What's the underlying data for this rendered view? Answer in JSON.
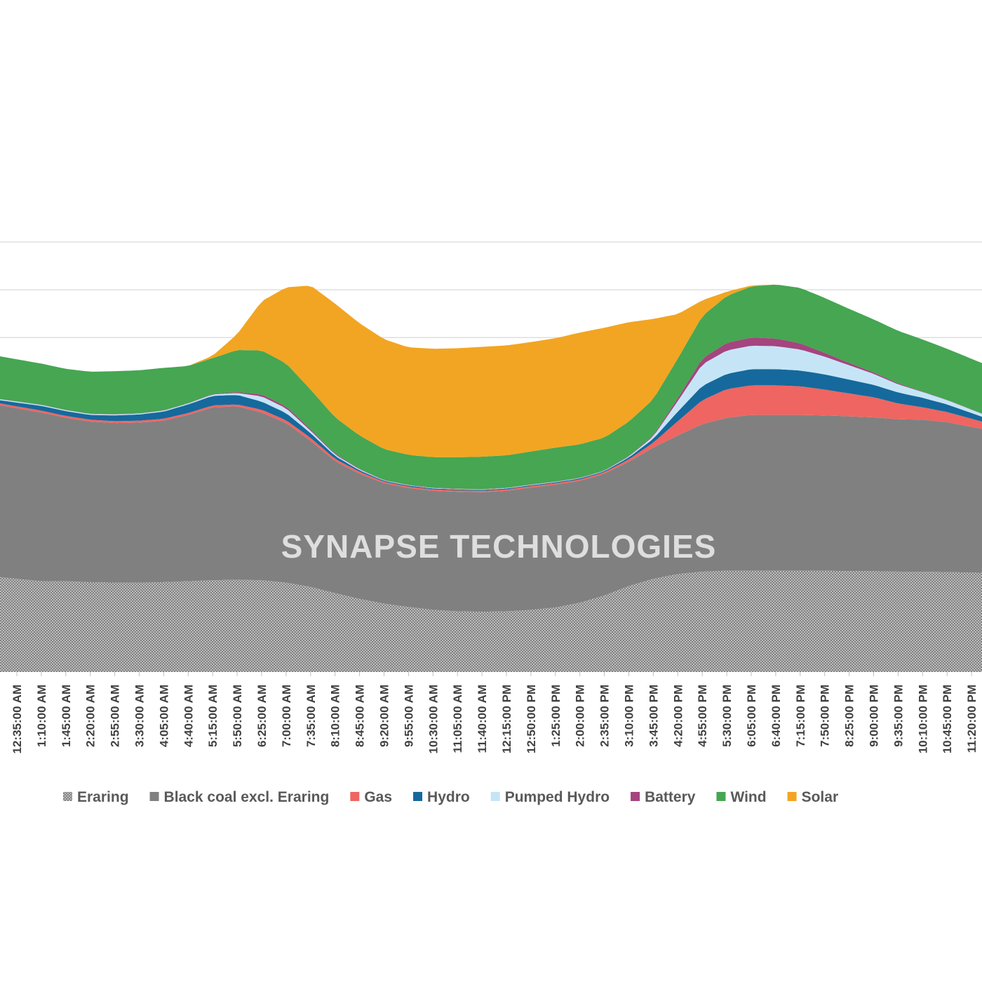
{
  "chart_data": {
    "type": "area",
    "stacked": true,
    "title": "",
    "xlabel": "",
    "ylabel": "",
    "grid": true,
    "legend_position": "bottom",
    "watermark": "SYNAPSE TECHNOLOGIES",
    "units": "relative MW (axis values not shown)",
    "ylim": [
      0,
      9000
    ],
    "gridlines": [
      6000,
      7000,
      8000,
      9000
    ],
    "x": [
      "12:35:00 AM",
      "1:10:00 AM",
      "1:45:00 AM",
      "2:20:00 AM",
      "2:55:00 AM",
      "3:30:00 AM",
      "4:05:00 AM",
      "4:40:00 AM",
      "5:15:00 AM",
      "5:50:00 AM",
      "6:25:00 AM",
      "7:00:00 AM",
      "7:35:00 AM",
      "8:10:00 AM",
      "8:45:00 AM",
      "9:20:00 AM",
      "9:55:00 AM",
      "10:30:00 AM",
      "11:05:00 AM",
      "11:40:00 AM",
      "12:15:00 PM",
      "12:50:00 PM",
      "1:25:00 PM",
      "2:00:00 PM",
      "2:35:00 PM",
      "3:10:00 PM",
      "3:45:00 PM",
      "4:20:00 PM",
      "4:55:00 PM",
      "5:30:00 PM",
      "6:05:00 PM",
      "6:40:00 PM",
      "7:15:00 PM",
      "7:50:00 PM",
      "8:25:00 PM",
      "9:00:00 PM",
      "9:35:00 PM",
      "10:10:00 PM",
      "10:45:00 PM",
      "11:20:00 PM"
    ],
    "series": [
      {
        "name": "Eraring",
        "color": "#999999",
        "pattern": "checker",
        "values": [
          1950,
          1900,
          1900,
          1880,
          1870,
          1870,
          1880,
          1900,
          1920,
          1930,
          1920,
          1870,
          1780,
          1650,
          1530,
          1430,
          1360,
          1300,
          1270,
          1260,
          1270,
          1300,
          1350,
          1450,
          1600,
          1800,
          1950,
          2050,
          2100,
          2120,
          2120,
          2120,
          2120,
          2120,
          2110,
          2110,
          2100,
          2100,
          2090,
          2080
        ]
      },
      {
        "name": "Black coal excl. Eraring",
        "color": "#808080",
        "values": [
          3570,
          3530,
          3420,
          3360,
          3340,
          3350,
          3380,
          3480,
          3620,
          3630,
          3510,
          3340,
          3060,
          2760,
          2620,
          2520,
          2490,
          2490,
          2500,
          2500,
          2520,
          2560,
          2570,
          2550,
          2550,
          2600,
          2750,
          2900,
          3090,
          3200,
          3260,
          3260,
          3260,
          3250,
          3240,
          3220,
          3190,
          3180,
          3140,
          3050
        ]
      },
      {
        "name": "Gas",
        "color": "#ef6561",
        "values": [
          40,
          40,
          40,
          40,
          40,
          40,
          40,
          40,
          40,
          40,
          60,
          60,
          60,
          50,
          40,
          30,
          30,
          30,
          30,
          30,
          30,
          30,
          30,
          30,
          30,
          50,
          100,
          300,
          500,
          600,
          620,
          620,
          600,
          540,
          480,
          420,
          330,
          260,
          210,
          170
        ]
      },
      {
        "name": "Hydro",
        "color": "#16699c",
        "values": [
          80,
          100,
          100,
          100,
          120,
          130,
          150,
          180,
          200,
          200,
          170,
          150,
          100,
          60,
          30,
          20,
          20,
          20,
          20,
          20,
          20,
          20,
          20,
          20,
          20,
          40,
          80,
          200,
          300,
          320,
          340,
          340,
          330,
          320,
          290,
          260,
          230,
          200,
          160,
          120
        ]
      },
      {
        "name": "Pumped Hydro",
        "color": "#c5e5f7",
        "values": [
          20,
          20,
          20,
          20,
          20,
          20,
          20,
          20,
          30,
          40,
          110,
          100,
          50,
          30,
          20,
          10,
          10,
          10,
          10,
          10,
          10,
          10,
          10,
          10,
          10,
          20,
          50,
          220,
          450,
          490,
          490,
          480,
          440,
          370,
          300,
          230,
          170,
          120,
          90,
          70
        ]
      },
      {
        "name": "Battery",
        "color": "#a5447f",
        "values": [
          5,
          5,
          5,
          5,
          5,
          5,
          5,
          5,
          10,
          20,
          40,
          40,
          30,
          20,
          10,
          5,
          5,
          5,
          5,
          5,
          5,
          5,
          5,
          5,
          5,
          10,
          20,
          60,
          120,
          160,
          170,
          160,
          130,
          80,
          50,
          30,
          20,
          10,
          5,
          5
        ]
      },
      {
        "name": "Wind",
        "color": "#46a652",
        "values": [
          880,
          860,
          860,
          880,
          900,
          900,
          890,
          780,
          750,
          880,
          920,
          900,
          830,
          760,
          700,
          650,
          630,
          640,
          660,
          680,
          680,
          690,
          710,
          700,
          690,
          720,
          760,
          830,
          890,
          980,
          1070,
          1130,
          1160,
          1150,
          1130,
          1110,
          1100,
          1090,
          1070,
          1060
        ]
      },
      {
        "name": "Solar",
        "color": "#f2a522",
        "values": [
          0,
          0,
          0,
          0,
          0,
          0,
          0,
          0,
          50,
          330,
          1030,
          1590,
          2180,
          2380,
          2350,
          2300,
          2250,
          2270,
          2280,
          2300,
          2300,
          2290,
          2290,
          2340,
          2300,
          2080,
          1680,
          930,
          330,
          90,
          20,
          0,
          0,
          0,
          0,
          0,
          0,
          0,
          0,
          0
        ]
      }
    ]
  }
}
